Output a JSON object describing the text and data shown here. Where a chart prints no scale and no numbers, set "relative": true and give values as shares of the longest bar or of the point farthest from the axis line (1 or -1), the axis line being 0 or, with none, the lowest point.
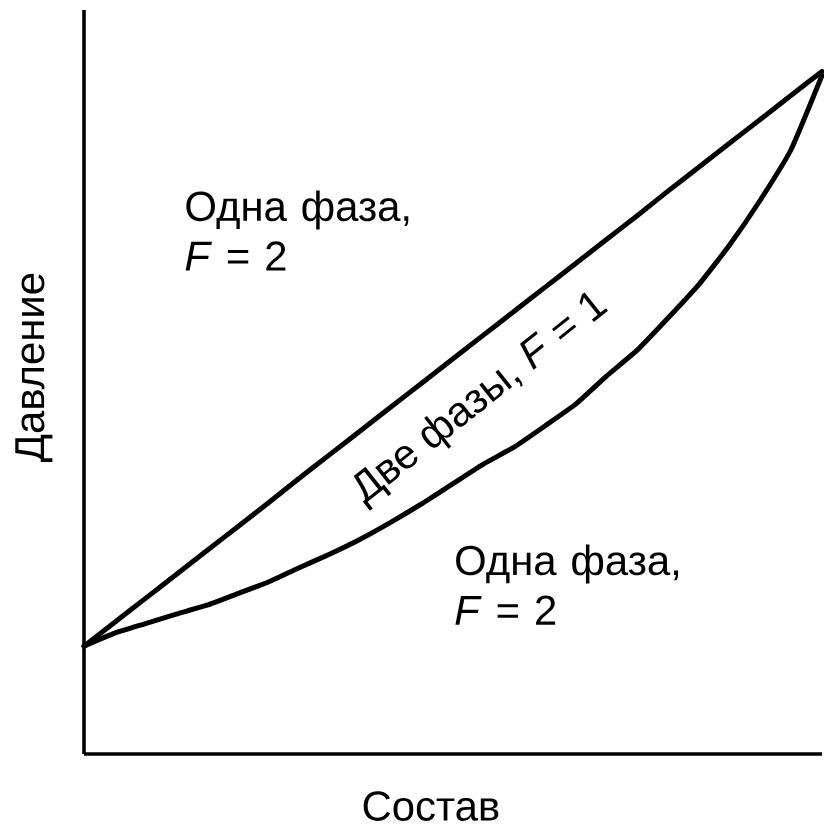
{
  "chart_data": {
    "type": "line",
    "relative": true,
    "xlabel": "Состав",
    "ylabel": "Давление",
    "annotations": [
      "Одна фаза, *F* = 2",
      "Две фазы, *F* = 1",
      "Одна фаза, *F* = 2"
    ],
    "categories": [
      null,
      null,
      null,
      null,
      null,
      null,
      null,
      null,
      null,
      null,
      null,
      null,
      null,
      null,
      null,
      null,
      null,
      null,
      null,
      null,
      null,
      null,
      null,
      null,
      null
    ],
    "series": [
      {
        "color": "#000000",
        "values": [
          0.158,
          0.193,
          0.228,
          0.263,
          0.298,
          0.333,
          0.368,
          0.404,
          0.439,
          0.474,
          0.509,
          0.544,
          0.579,
          0.614,
          0.649,
          0.684,
          0.719,
          0.754,
          0.789,
          0.825,
          0.86,
          0.895,
          0.93,
          0.965,
          1.0
        ]
      },
      {
        "color": "#000000",
        "values": [
          0.158,
          0.177,
          0.191,
          0.205,
          0.218,
          0.235,
          0.252,
          0.273,
          0.293,
          0.315,
          0.34,
          0.367,
          0.396,
          0.425,
          0.45,
          0.481,
          0.513,
          0.554,
          0.592,
          0.639,
          0.688,
          0.746,
          0.812,
          0.886,
          0.994
        ]
      }
    ]
  }
}
